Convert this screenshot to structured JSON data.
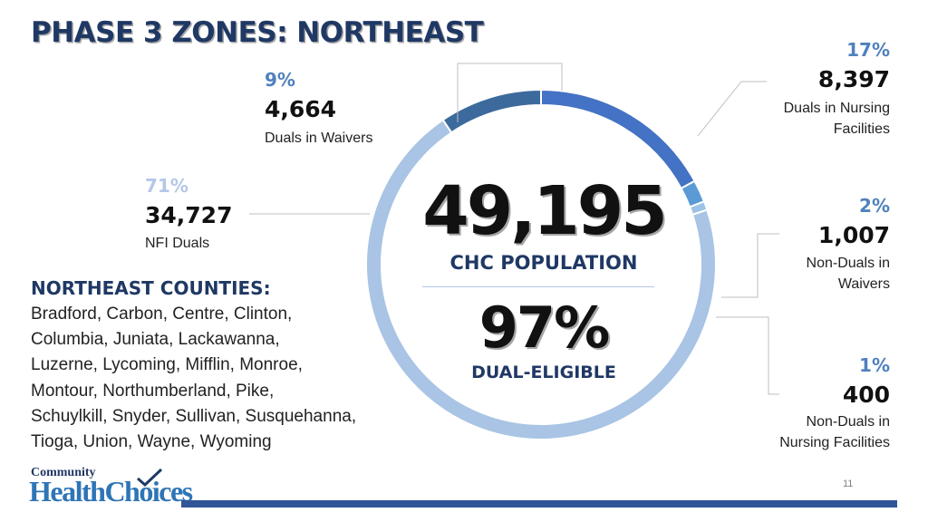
{
  "slide": {
    "title": "PHASE 3 ZONES: NORTHEAST",
    "page_number": "11"
  },
  "chart_data": {
    "type": "pie",
    "variant": "donut",
    "slices": [
      {
        "label": "Duals in Nursing Facilities",
        "percent_label": "17%",
        "value": 8397,
        "value_label": "8,397",
        "color": "#4472c4"
      },
      {
        "label": "Non-Duals in Waivers",
        "percent_label": "2%",
        "value": 1007,
        "value_label": "1,007",
        "color": "#5b9bd5"
      },
      {
        "label": "Non-Duals in Nursing Facilities",
        "percent_label": "1%",
        "value": 400,
        "value_label": "400",
        "color": "#9dc3e6"
      },
      {
        "label": "NFI Duals",
        "percent_label": "71%",
        "value": 34727,
        "value_label": "34,727",
        "color": "#a9c4e4"
      },
      {
        "label": "Duals in Waivers",
        "percent_label": "9%",
        "value": 4664,
        "value_label": "4,664",
        "color": "#3c6a9c"
      }
    ],
    "start_angle_deg": 0,
    "center": {
      "total": "49,195",
      "total_label": "CHC POPULATION",
      "dual_percent": "97%",
      "dual_label": "DUAL-ELIGIBLE"
    }
  },
  "labels": {
    "duals_in_waivers": {
      "pct": "9%",
      "num": "4,664",
      "cap": "Duals in Waivers"
    },
    "nfi_duals": {
      "pct": "71%",
      "num": "34,727",
      "cap": "NFI Duals"
    },
    "duals_in_nf": {
      "pct": "17%",
      "num": "8,397",
      "cap1": "Duals in Nursing",
      "cap2": "Facilities"
    },
    "nonduals_waivers": {
      "pct": "2%",
      "num": "1,007",
      "cap1": "Non-Duals in",
      "cap2": "Waivers"
    },
    "nonduals_nf": {
      "pct": "1%",
      "num": "400",
      "cap1": "Non-Duals in",
      "cap2": "Nursing Facilities"
    }
  },
  "counties": {
    "heading": "NORTHEAST COUNTIES:",
    "lines": [
      "Bradford, Carbon, Centre, Clinton,",
      "Columbia, Juniata, Lackawanna,",
      "Luzerne, Lycoming, Mifflin, Monroe,",
      "Montour, Northumberland, Pike,",
      "Schuylkill, Snyder, Sullivan, Susquehanna,",
      "Tioga, Union, Wayne, Wyoming"
    ]
  },
  "logo": {
    "line1": "Community",
    "line2": "HealthChoices"
  },
  "colors": {
    "title": "#1f3864",
    "leader_line": "#bfbfbf",
    "pct_blue": "#4f81bd",
    "pct_light": "#b4c7e7",
    "footer_bar": "#2f5597"
  }
}
